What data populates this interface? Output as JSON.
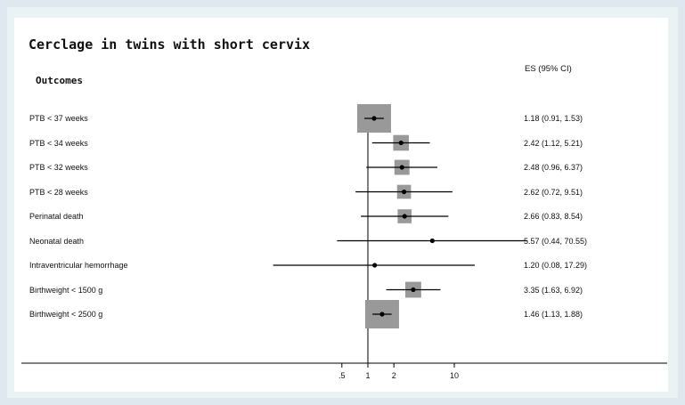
{
  "chart_data": {
    "type": "forest",
    "title": "Cerclage in twins with short cervix",
    "column_header": "Outcomes",
    "estimate_header": "ES (95% CI)",
    "x_scale": "log",
    "x_ticks": [
      0.5,
      1,
      2,
      10
    ],
    "x_tick_labels": [
      ".5",
      "1",
      "2",
      "10"
    ],
    "null_line": 1,
    "marker_color": "#999999",
    "rows": [
      {
        "label": "PTB < 37 weeks",
        "es": 1.18,
        "lo": 0.91,
        "hi": 1.53,
        "text": "1.18 (0.91, 1.53)",
        "weight": 1.0
      },
      {
        "label": "PTB < 34 weeks",
        "es": 2.42,
        "lo": 1.12,
        "hi": 5.21,
        "text": "2.42 (1.12, 5.21)",
        "weight": 0.15
      },
      {
        "label": "PTB < 32 weeks",
        "es": 2.48,
        "lo": 0.96,
        "hi": 6.37,
        "text": "2.48 (0.96, 6.37)",
        "weight": 0.12
      },
      {
        "label": "PTB < 28 weeks",
        "es": 2.62,
        "lo": 0.72,
        "hi": 9.51,
        "text": "2.62 (0.72, 9.51)",
        "weight": 0.07
      },
      {
        "label": "Perinatal death",
        "es": 2.66,
        "lo": 0.83,
        "hi": 8.54,
        "text": "2.66 (0.83, 8.54)",
        "weight": 0.07
      },
      {
        "label": "Neonatal death",
        "es": 5.57,
        "lo": 0.44,
        "hi": 70.55,
        "text": "5.57 (0.44, 70.55)",
        "weight": 0.0
      },
      {
        "label": "Intraventricular hemorrhage",
        "es": 1.2,
        "lo": 0.08,
        "hi": 17.29,
        "text": "1.20 (0.08, 17.29)",
        "weight": 0.0
      },
      {
        "label": "Birthweight < 1500 g",
        "es": 3.35,
        "lo": 1.63,
        "hi": 6.92,
        "text": "3.35 (1.63, 6.92)",
        "weight": 0.16
      },
      {
        "label": "Birthweight < 2500 g",
        "es": 1.46,
        "lo": 1.13,
        "hi": 1.88,
        "text": "1.46 (1.13, 1.88)",
        "weight": 1.0
      }
    ]
  }
}
